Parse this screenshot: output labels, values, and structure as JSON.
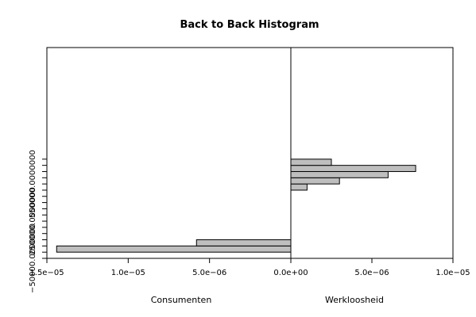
{
  "chart_data": {
    "type": "bar",
    "title": "Back to Back Histogram",
    "left_label": "Consumenten",
    "right_label": "Werkloosheid",
    "xlim": [
      -1.5e-05,
      1e-05
    ],
    "ylim": [
      -50000,
      1650000
    ],
    "x_ticks": [
      {
        "value": -1.5e-05,
        "label": "1.5e−05"
      },
      {
        "value": -1e-05,
        "label": "1.0e−05"
      },
      {
        "value": -5e-06,
        "label": "5.0e−06"
      },
      {
        "value": 0,
        "label": "0.0e+00"
      },
      {
        "value": 5e-06,
        "label": "5.0e−06"
      },
      {
        "value": 1e-05,
        "label": "1.0e−05"
      }
    ],
    "y_ticks": [
      -50000,
      0,
      50000,
      100000,
      150000,
      200000,
      250000,
      300000,
      350000,
      400000,
      450000,
      500000,
      550000,
      600000,
      650000,
      700000,
      750000
    ],
    "y_tick_labels": [
      {
        "value": -50000,
        "label": "−50000.0000000"
      },
      {
        "value": 250000,
        "label": "250000.0000000"
      },
      {
        "value": 550000,
        "label": "550000.0000000"
      }
    ],
    "series": [
      {
        "name": "Consumenten",
        "side": "left",
        "bins": [
          {
            "from": 0,
            "to": 50000,
            "value": 1.44e-05
          },
          {
            "from": 50000,
            "to": 100000,
            "value": 5.8e-06
          }
        ]
      },
      {
        "name": "Werkloosheid",
        "side": "right",
        "bins": [
          {
            "from": 500000,
            "to": 550000,
            "value": 1e-06
          },
          {
            "from": 550000,
            "to": 600000,
            "value": 3e-06
          },
          {
            "from": 600000,
            "to": 650000,
            "value": 6e-06
          },
          {
            "from": 650000,
            "to": 700000,
            "value": 7.7e-06
          },
          {
            "from": 700000,
            "to": 750000,
            "value": 2.5e-06
          }
        ]
      }
    ]
  }
}
